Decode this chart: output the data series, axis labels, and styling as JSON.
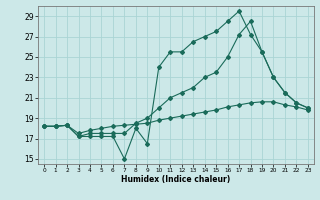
{
  "title": "",
  "xlabel": "Humidex (Indice chaleur)",
  "bg_color": "#cce8e8",
  "grid_color": "#aad4d4",
  "line_color": "#1a6b5a",
  "xlim": [
    -0.5,
    23.5
  ],
  "ylim": [
    14.5,
    30.0
  ],
  "xticks": [
    0,
    1,
    2,
    3,
    4,
    5,
    6,
    7,
    8,
    9,
    10,
    11,
    12,
    13,
    14,
    15,
    16,
    17,
    18,
    19,
    20,
    21,
    22,
    23
  ],
  "yticks": [
    15,
    17,
    19,
    21,
    23,
    25,
    27,
    29
  ],
  "line1_x": [
    0,
    1,
    2,
    3,
    4,
    5,
    6,
    7,
    8,
    9,
    10,
    11,
    12,
    13,
    14,
    15,
    16,
    17,
    18,
    19,
    20,
    21,
    22,
    23
  ],
  "line1_y": [
    18.2,
    18.2,
    18.3,
    17.2,
    17.2,
    17.2,
    17.2,
    15.0,
    18.0,
    16.5,
    24.0,
    25.5,
    25.5,
    26.5,
    27.0,
    27.5,
    28.5,
    29.5,
    27.2,
    25.5,
    23.0,
    21.5,
    20.5,
    20.0
  ],
  "line2_x": [
    0,
    1,
    2,
    3,
    4,
    5,
    6,
    7,
    8,
    9,
    10,
    11,
    12,
    13,
    14,
    15,
    16,
    17,
    18,
    19,
    20,
    21,
    22,
    23
  ],
  "line2_y": [
    18.2,
    18.2,
    18.3,
    17.2,
    17.5,
    17.5,
    17.5,
    17.5,
    18.5,
    19.0,
    20.0,
    21.0,
    21.5,
    22.0,
    23.0,
    23.5,
    25.0,
    27.2,
    28.5,
    25.5,
    23.0,
    21.5,
    20.5,
    20.0
  ],
  "line3_x": [
    0,
    1,
    2,
    3,
    4,
    5,
    6,
    7,
    8,
    9,
    10,
    11,
    12,
    13,
    14,
    15,
    16,
    17,
    18,
    19,
    20,
    21,
    22,
    23
  ],
  "line3_y": [
    18.2,
    18.2,
    18.3,
    17.5,
    17.8,
    18.0,
    18.2,
    18.3,
    18.4,
    18.5,
    18.8,
    19.0,
    19.2,
    19.4,
    19.6,
    19.8,
    20.1,
    20.3,
    20.5,
    20.6,
    20.6,
    20.3,
    20.1,
    19.8
  ]
}
